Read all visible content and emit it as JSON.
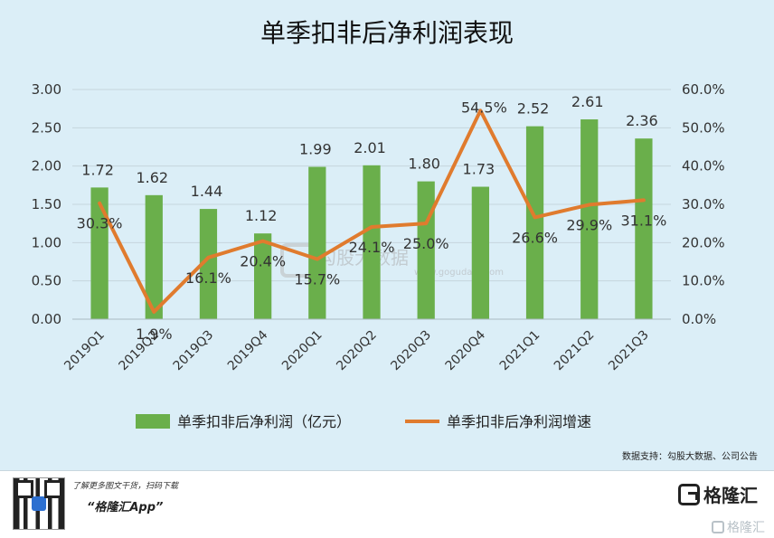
{
  "chart_data": {
    "type": "bar",
    "title": "单季扣非后净利润表现",
    "categories": [
      "2019Q1",
      "2019Q2",
      "2019Q3",
      "2019Q4",
      "2020Q1",
      "2020Q2",
      "2020Q3",
      "2020Q4",
      "2021Q1",
      "2021Q2",
      "2021Q3"
    ],
    "series": [
      {
        "name": "单季扣非后净利润（亿元）",
        "kind": "bar",
        "axis": "left",
        "color": "#6aaf4b",
        "values": [
          1.72,
          1.62,
          1.44,
          1.12,
          1.99,
          2.01,
          1.8,
          1.73,
          2.52,
          2.61,
          2.36
        ],
        "labels": [
          "1.72",
          "1.62",
          "1.44",
          "1.12",
          "1.99",
          "2.01",
          "1.80",
          "1.73",
          "2.52",
          "2.61",
          "2.36"
        ]
      },
      {
        "name": "单季扣非后净利润增速",
        "kind": "line",
        "axis": "right",
        "color": "#e07b2e",
        "values": [
          30.3,
          1.9,
          16.1,
          20.4,
          15.7,
          24.1,
          25.0,
          54.5,
          26.6,
          29.9,
          31.1
        ],
        "labels": [
          "30.3%",
          "1.9%",
          "16.1%",
          "20.4%",
          "15.7%",
          "24.1%",
          "25.0%",
          "54.5%",
          "26.6%",
          "29.9%",
          "31.1%"
        ]
      }
    ],
    "ylim": [
      0,
      3
    ],
    "y_ticks": [
      "0.00",
      "0.50",
      "1.00",
      "1.50",
      "2.00",
      "2.50",
      "3.00"
    ],
    "y2lim": [
      0,
      60
    ],
    "y2_ticks": [
      "0.0%",
      "10.0%",
      "20.0%",
      "30.0%",
      "40.0%",
      "50.0%",
      "60.0%"
    ],
    "grid": true,
    "legend_position": "bottom"
  },
  "watermark": {
    "text": "勾股大数据",
    "url": "www.gogudata.com"
  },
  "source_note": "数据支持：勾股大数据、公司公告",
  "footer": {
    "tagline": "了解更多图文干货，扫码下载",
    "app_name": "“格隆汇App”",
    "logo_text": "格隆汇",
    "watermark_text": "格隆汇"
  }
}
